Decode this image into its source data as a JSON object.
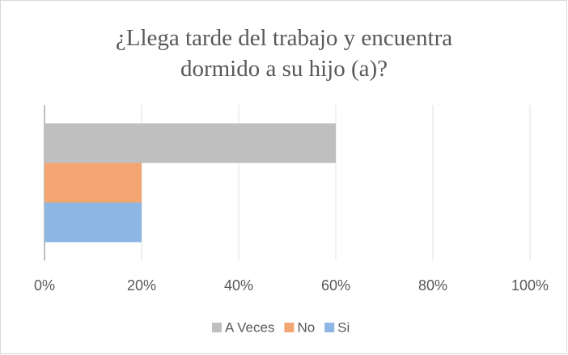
{
  "chart_data": {
    "type": "bar",
    "orientation": "horizontal",
    "title": "¿Llega tarde del trabajo y encuentra dormido a su hijo (a)?",
    "categories": [
      null
    ],
    "series": [
      {
        "name": "A Veces",
        "color": "#bfbfbf",
        "values": [
          60
        ]
      },
      {
        "name": "No",
        "color": "#f4a672",
        "values": [
          20
        ]
      },
      {
        "name": "Si",
        "color": "#8db7e2",
        "values": [
          20
        ]
      }
    ],
    "xlim": [
      0,
      100
    ],
    "xticks": [
      {
        "value": 0,
        "label": "0%"
      },
      {
        "value": 20,
        "label": "20%"
      },
      {
        "value": 40,
        "label": "40%"
      },
      {
        "value": 60,
        "label": "60%"
      },
      {
        "value": 80,
        "label": "80%"
      },
      {
        "value": 100,
        "label": "100%"
      }
    ],
    "grid": true,
    "legend": "bottom"
  }
}
